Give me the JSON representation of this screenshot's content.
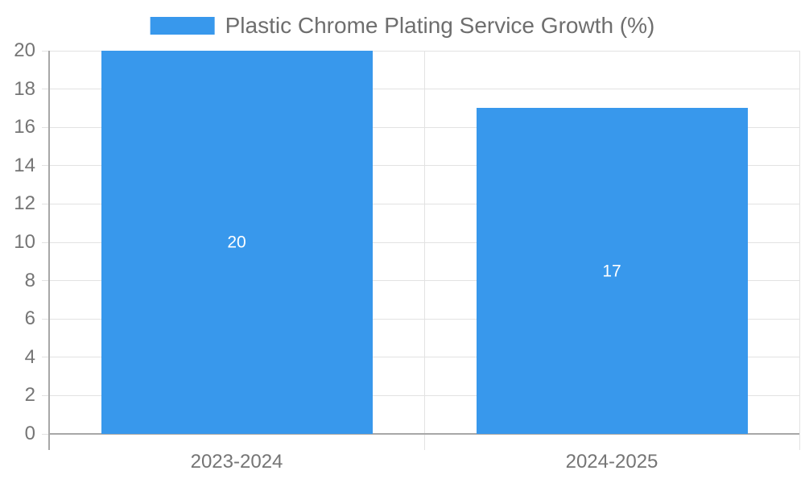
{
  "chart_data": {
    "type": "bar",
    "title": "Plastic Chrome Plating Service Growth (%)",
    "legend": {
      "position": "top",
      "entries": [
        "Plastic Chrome Plating Service Growth (%)"
      ]
    },
    "categories": [
      "2023-2024",
      "2024-2025"
    ],
    "series": [
      {
        "name": "Plastic Chrome Plating Service Growth (%)",
        "values": [
          20,
          17
        ],
        "data_labels": [
          "20",
          "17"
        ]
      }
    ],
    "xlabel": "",
    "ylabel": "",
    "ylim": [
      0,
      20
    ],
    "yticks": [
      0,
      2,
      4,
      6,
      8,
      10,
      12,
      14,
      16,
      18,
      20
    ],
    "grid": true,
    "colors": {
      "bar": "#3898EC",
      "data_label": "#FFFFFF",
      "grid_line": "#E2E2E2",
      "axis_line": "#A8A8A8",
      "tick_text": "#757575",
      "legend_text": "#6E6E6E",
      "background": "#FFFFFF"
    }
  }
}
